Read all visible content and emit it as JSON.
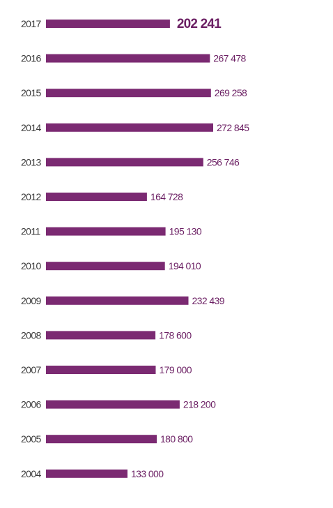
{
  "chart_data": {
    "type": "bar",
    "orientation": "horizontal",
    "categories": [
      "2017",
      "2016",
      "2015",
      "2014",
      "2013",
      "2012",
      "2011",
      "2010",
      "2009",
      "2008",
      "2007",
      "2006",
      "2005",
      "2004"
    ],
    "values": [
      202241,
      267478,
      269258,
      272845,
      256746,
      164728,
      195130,
      194010,
      232439,
      178600,
      179000,
      218200,
      180800,
      133000
    ],
    "value_labels": [
      "202 241",
      "267 478",
      "269 258",
      "272 845",
      "256 746",
      "164 728",
      "195 130",
      "194 010",
      "232 439",
      "178 600",
      "179 000",
      "218 200",
      "180 800",
      "133 000"
    ],
    "highlight_category": "2017",
    "bar_color": "#7b2a72",
    "label_color": "#6b1f63",
    "year_color": "#3a3a3a",
    "grid": false,
    "legend": "none"
  }
}
